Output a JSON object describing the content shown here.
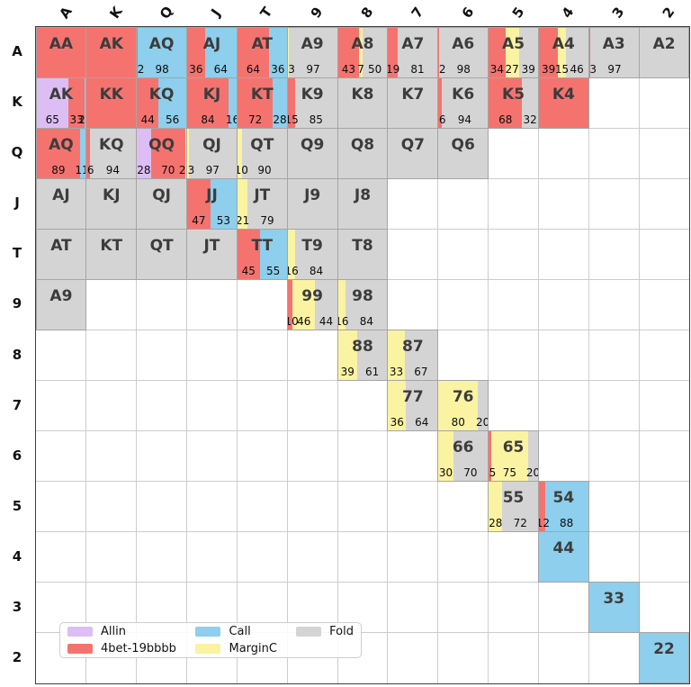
{
  "chart_data": {
    "type": "heatmap",
    "title": "",
    "description": "13x13 poker preflop hand range grid; each cell shows action mix percentages",
    "columns": [
      "A",
      "K",
      "Q",
      "J",
      "T",
      "9",
      "8",
      "7",
      "6",
      "5",
      "4",
      "3",
      "2"
    ],
    "rows": [
      "A",
      "K",
      "Q",
      "J",
      "T",
      "9",
      "8",
      "7",
      "6",
      "5",
      "4",
      "3",
      "2"
    ],
    "colors": {
      "allin": "#DCBEF5",
      "4bet": "#F5736F",
      "call": "#8DCFEC",
      "margin": "#FAF3A2",
      "fold": "#D4D4D4"
    },
    "legend": [
      {
        "label": "Allin",
        "action": "allin"
      },
      {
        "label": "4bet-19bbbb",
        "action": "4bet"
      },
      {
        "label": "Call",
        "action": "call"
      },
      {
        "label": "MarginC",
        "action": "margin"
      },
      {
        "label": "Fold",
        "action": "fold"
      }
    ],
    "grid": [
      [
        {
          "hand": "AA",
          "segments": [
            [
              "4bet",
              100
            ]
          ]
        },
        {
          "hand": "AK",
          "segments": [
            [
              "4bet",
              100
            ]
          ]
        },
        {
          "hand": "AQ",
          "segments": [
            [
              "4bet",
              2
            ],
            [
              "call",
              98
            ]
          ]
        },
        {
          "hand": "AJ",
          "segments": [
            [
              "4bet",
              36
            ],
            [
              "call",
              64
            ]
          ]
        },
        {
          "hand": "AT",
          "segments": [
            [
              "4bet",
              64
            ],
            [
              "call",
              36
            ]
          ]
        },
        {
          "hand": "A9",
          "segments": [
            [
              "margin",
              3
            ],
            [
              "fold",
              97
            ]
          ]
        },
        {
          "hand": "A8",
          "segments": [
            [
              "4bet",
              43
            ],
            [
              "margin",
              7
            ],
            [
              "fold",
              50
            ]
          ]
        },
        {
          "hand": "A7",
          "segments": [
            [
              "4bet",
              19
            ],
            [
              "fold",
              81
            ]
          ]
        },
        {
          "hand": "A6",
          "segments": [
            [
              "4bet",
              2
            ],
            [
              "fold",
              98
            ]
          ]
        },
        {
          "hand": "A5",
          "segments": [
            [
              "4bet",
              34
            ],
            [
              "margin",
              27
            ],
            [
              "fold",
              39
            ]
          ]
        },
        {
          "hand": "A4",
          "segments": [
            [
              "4bet",
              39
            ],
            [
              "margin",
              15
            ],
            [
              "fold",
              46
            ]
          ]
        },
        {
          "hand": "A3",
          "segments": [
            [
              "4bet",
              3
            ],
            [
              "fold",
              97
            ]
          ]
        },
        {
          "hand": "A2",
          "segments": [
            [
              "fold",
              100
            ]
          ]
        }
      ],
      [
        {
          "hand": "AK",
          "segments": [
            [
              "allin",
              65
            ],
            [
              "4bet",
              33
            ],
            [
              "call",
              2
            ]
          ]
        },
        {
          "hand": "KK",
          "segments": [
            [
              "4bet",
              100
            ]
          ]
        },
        {
          "hand": "KQ",
          "segments": [
            [
              "4bet",
              44
            ],
            [
              "call",
              56
            ]
          ]
        },
        {
          "hand": "KJ",
          "segments": [
            [
              "4bet",
              84
            ],
            [
              "call",
              16
            ]
          ]
        },
        {
          "hand": "KT",
          "segments": [
            [
              "4bet",
              72
            ],
            [
              "call",
              28
            ]
          ]
        },
        {
          "hand": "K9",
          "segments": [
            [
              "4bet",
              15
            ],
            [
              "fold",
              85
            ]
          ]
        },
        {
          "hand": "K8",
          "segments": [
            [
              "fold",
              100
            ]
          ]
        },
        {
          "hand": "K7",
          "segments": [
            [
              "fold",
              100
            ]
          ]
        },
        {
          "hand": "K6",
          "segments": [
            [
              "4bet",
              6
            ],
            [
              "fold",
              94
            ]
          ]
        },
        {
          "hand": "K5",
          "segments": [
            [
              "4bet",
              68
            ],
            [
              "fold",
              32
            ]
          ]
        },
        {
          "hand": "K4",
          "segments": [
            [
              "4bet",
              100
            ]
          ]
        },
        null,
        null
      ],
      [
        {
          "hand": "AQ",
          "segments": [
            [
              "4bet",
              89
            ],
            [
              "call",
              11
            ]
          ]
        },
        {
          "hand": "KQ",
          "segments": [
            [
              "4bet",
              6
            ],
            [
              "fold",
              94
            ]
          ]
        },
        {
          "hand": "QQ",
          "segments": [
            [
              "allin",
              28
            ],
            [
              "4bet",
              70
            ],
            [
              "margin",
              2
            ]
          ]
        },
        {
          "hand": "QJ",
          "segments": [
            [
              "margin",
              3
            ],
            [
              "fold",
              97
            ]
          ]
        },
        {
          "hand": "QT",
          "segments": [
            [
              "margin",
              10
            ],
            [
              "fold",
              90
            ]
          ]
        },
        {
          "hand": "Q9",
          "segments": [
            [
              "fold",
              100
            ]
          ]
        },
        {
          "hand": "Q8",
          "segments": [
            [
              "fold",
              100
            ]
          ]
        },
        {
          "hand": "Q7",
          "segments": [
            [
              "fold",
              100
            ]
          ]
        },
        {
          "hand": "Q6",
          "segments": [
            [
              "fold",
              100
            ]
          ]
        },
        null,
        null,
        null,
        null
      ],
      [
        {
          "hand": "AJ",
          "segments": [
            [
              "fold",
              100
            ]
          ]
        },
        {
          "hand": "KJ",
          "segments": [
            [
              "fold",
              100
            ]
          ]
        },
        {
          "hand": "QJ",
          "segments": [
            [
              "fold",
              100
            ]
          ]
        },
        {
          "hand": "JJ",
          "segments": [
            [
              "4bet",
              47
            ],
            [
              "call",
              53
            ]
          ]
        },
        {
          "hand": "JT",
          "segments": [
            [
              "margin",
              21
            ],
            [
              "fold",
              79
            ]
          ]
        },
        {
          "hand": "J9",
          "segments": [
            [
              "fold",
              100
            ]
          ]
        },
        {
          "hand": "J8",
          "segments": [
            [
              "fold",
              100
            ]
          ]
        },
        null,
        null,
        null,
        null,
        null,
        null
      ],
      [
        {
          "hand": "AT",
          "segments": [
            [
              "fold",
              100
            ]
          ]
        },
        {
          "hand": "KT",
          "segments": [
            [
              "fold",
              100
            ]
          ]
        },
        {
          "hand": "QT",
          "segments": [
            [
              "fold",
              100
            ]
          ]
        },
        {
          "hand": "JT",
          "segments": [
            [
              "fold",
              100
            ]
          ]
        },
        {
          "hand": "TT",
          "segments": [
            [
              "4bet",
              45
            ],
            [
              "call",
              55
            ]
          ]
        },
        {
          "hand": "T9",
          "segments": [
            [
              "margin",
              16
            ],
            [
              "fold",
              84
            ]
          ]
        },
        {
          "hand": "T8",
          "segments": [
            [
              "fold",
              100
            ]
          ]
        },
        null,
        null,
        null,
        null,
        null,
        null
      ],
      [
        {
          "hand": "A9",
          "segments": [
            [
              "fold",
              100
            ]
          ]
        },
        null,
        null,
        null,
        null,
        {
          "hand": "99",
          "segments": [
            [
              "4bet",
              10
            ],
            [
              "margin",
              46
            ],
            [
              "fold",
              44
            ]
          ]
        },
        {
          "hand": "98",
          "segments": [
            [
              "margin",
              16
            ],
            [
              "fold",
              84
            ]
          ]
        },
        null,
        null,
        null,
        null,
        null,
        null
      ],
      [
        null,
        null,
        null,
        null,
        null,
        null,
        {
          "hand": "88",
          "segments": [
            [
              "margin",
              39
            ],
            [
              "fold",
              61
            ]
          ]
        },
        {
          "hand": "87",
          "segments": [
            [
              "margin",
              33
            ],
            [
              "fold",
              67
            ]
          ]
        },
        null,
        null,
        null,
        null,
        null
      ],
      [
        null,
        null,
        null,
        null,
        null,
        null,
        null,
        {
          "hand": "77",
          "segments": [
            [
              "margin",
              36
            ],
            [
              "fold",
              64
            ]
          ]
        },
        {
          "hand": "76",
          "segments": [
            [
              "margin",
              80
            ],
            [
              "fold",
              20
            ]
          ]
        },
        null,
        null,
        null,
        null
      ],
      [
        null,
        null,
        null,
        null,
        null,
        null,
        null,
        null,
        {
          "hand": "66",
          "segments": [
            [
              "margin",
              30
            ],
            [
              "fold",
              70
            ]
          ]
        },
        {
          "hand": "65",
          "segments": [
            [
              "4bet",
              5
            ],
            [
              "margin",
              75
            ],
            [
              "fold",
              20
            ]
          ]
        },
        null,
        null,
        null
      ],
      [
        null,
        null,
        null,
        null,
        null,
        null,
        null,
        null,
        null,
        {
          "hand": "55",
          "segments": [
            [
              "margin",
              28
            ],
            [
              "fold",
              72
            ]
          ]
        },
        {
          "hand": "54",
          "segments": [
            [
              "4bet",
              12
            ],
            [
              "call",
              88
            ]
          ]
        },
        null,
        null
      ],
      [
        null,
        null,
        null,
        null,
        null,
        null,
        null,
        null,
        null,
        null,
        {
          "hand": "44",
          "segments": [
            [
              "call",
              100
            ]
          ]
        },
        null,
        null
      ],
      [
        null,
        null,
        null,
        null,
        null,
        null,
        null,
        null,
        null,
        null,
        null,
        {
          "hand": "33",
          "segments": [
            [
              "call",
              100
            ]
          ]
        },
        null
      ],
      [
        null,
        null,
        null,
        null,
        null,
        null,
        null,
        null,
        null,
        null,
        null,
        null,
        {
          "hand": "22",
          "segments": [
            [
              "call",
              100
            ]
          ]
        }
      ]
    ]
  }
}
